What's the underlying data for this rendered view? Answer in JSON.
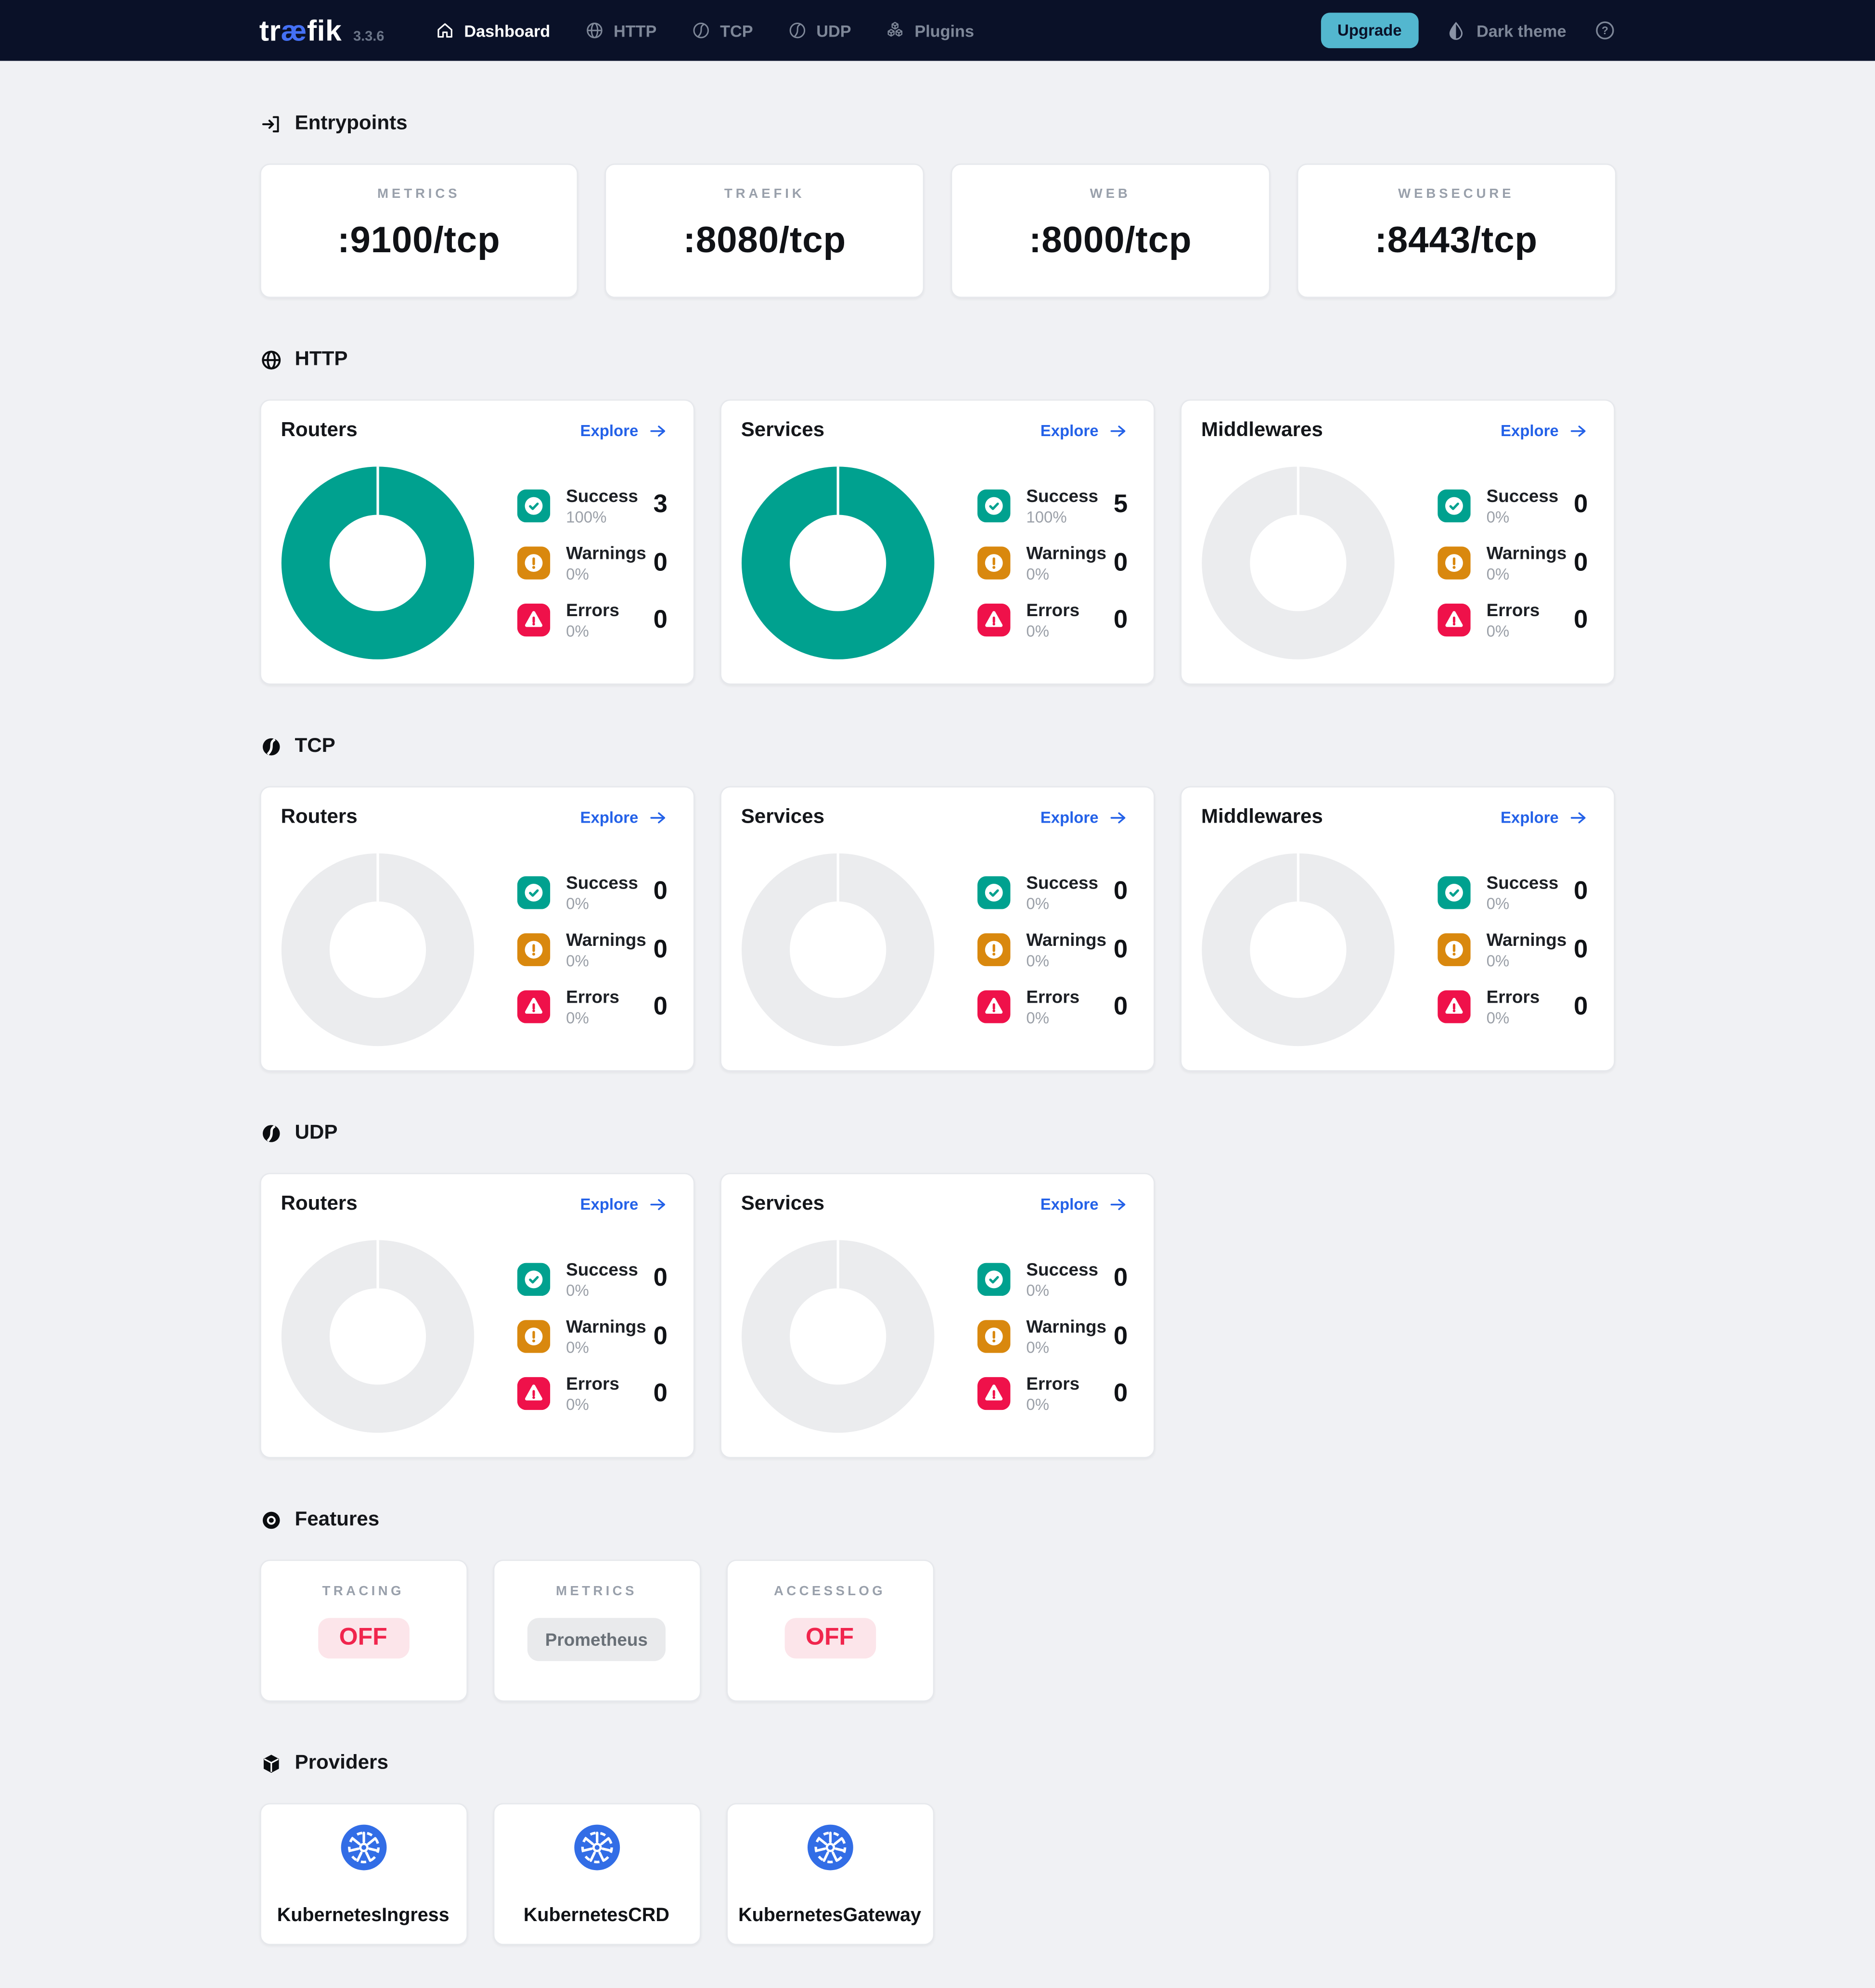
{
  "navbar": {
    "logo_parts": {
      "pre": "tr",
      "mid": "æ",
      "post": "fik"
    },
    "version": "3.3.6",
    "items": [
      {
        "label": "Dashboard",
        "icon": "home",
        "active": true
      },
      {
        "label": "HTTP",
        "icon": "globe",
        "active": false
      },
      {
        "label": "TCP",
        "icon": "ball",
        "active": false
      },
      {
        "label": "UDP",
        "icon": "ball",
        "active": false
      },
      {
        "label": "Plugins",
        "icon": "cubes",
        "active": false
      }
    ],
    "upgrade_label": "Upgrade",
    "theme_label": "Dark theme"
  },
  "entrypoints": {
    "title": "Entrypoints",
    "cards": [
      {
        "label": "METRICS",
        "value": ":9100/tcp"
      },
      {
        "label": "TRAEFIK",
        "value": ":8080/tcp"
      },
      {
        "label": "WEB",
        "value": ":8000/tcp"
      },
      {
        "label": "WEBSECURE",
        "value": ":8443/tcp"
      }
    ]
  },
  "protocol_sections": [
    {
      "id": "http",
      "title": "HTTP",
      "icon": "globe",
      "cards": [
        {
          "title": "Routers",
          "explore_label": "Explore",
          "donut": "filled",
          "stats": [
            {
              "label": "Success",
              "percent": "100%",
              "value": "3"
            },
            {
              "label": "Warnings",
              "percent": "0%",
              "value": "0"
            },
            {
              "label": "Errors",
              "percent": "0%",
              "value": "0"
            }
          ]
        },
        {
          "title": "Services",
          "explore_label": "Explore",
          "donut": "filled",
          "stats": [
            {
              "label": "Success",
              "percent": "100%",
              "value": "5"
            },
            {
              "label": "Warnings",
              "percent": "0%",
              "value": "0"
            },
            {
              "label": "Errors",
              "percent": "0%",
              "value": "0"
            }
          ]
        },
        {
          "title": "Middlewares",
          "explore_label": "Explore",
          "donut": "empty",
          "stats": [
            {
              "label": "Success",
              "percent": "0%",
              "value": "0"
            },
            {
              "label": "Warnings",
              "percent": "0%",
              "value": "0"
            },
            {
              "label": "Errors",
              "percent": "0%",
              "value": "0"
            }
          ]
        }
      ]
    },
    {
      "id": "tcp",
      "title": "TCP",
      "icon": "ball",
      "cards": [
        {
          "title": "Routers",
          "explore_label": "Explore",
          "donut": "empty",
          "stats": [
            {
              "label": "Success",
              "percent": "0%",
              "value": "0"
            },
            {
              "label": "Warnings",
              "percent": "0%",
              "value": "0"
            },
            {
              "label": "Errors",
              "percent": "0%",
              "value": "0"
            }
          ]
        },
        {
          "title": "Services",
          "explore_label": "Explore",
          "donut": "empty",
          "stats": [
            {
              "label": "Success",
              "percent": "0%",
              "value": "0"
            },
            {
              "label": "Warnings",
              "percent": "0%",
              "value": "0"
            },
            {
              "label": "Errors",
              "percent": "0%",
              "value": "0"
            }
          ]
        },
        {
          "title": "Middlewares",
          "explore_label": "Explore",
          "donut": "empty",
          "stats": [
            {
              "label": "Success",
              "percent": "0%",
              "value": "0"
            },
            {
              "label": "Warnings",
              "percent": "0%",
              "value": "0"
            },
            {
              "label": "Errors",
              "percent": "0%",
              "value": "0"
            }
          ]
        }
      ]
    },
    {
      "id": "udp",
      "title": "UDP",
      "icon": "ball",
      "cards": [
        {
          "title": "Routers",
          "explore_label": "Explore",
          "donut": "empty",
          "stats": [
            {
              "label": "Success",
              "percent": "0%",
              "value": "0"
            },
            {
              "label": "Warnings",
              "percent": "0%",
              "value": "0"
            },
            {
              "label": "Errors",
              "percent": "0%",
              "value": "0"
            }
          ]
        },
        {
          "title": "Services",
          "explore_label": "Explore",
          "donut": "empty",
          "stats": [
            {
              "label": "Success",
              "percent": "0%",
              "value": "0"
            },
            {
              "label": "Warnings",
              "percent": "0%",
              "value": "0"
            },
            {
              "label": "Errors",
              "percent": "0%",
              "value": "0"
            }
          ]
        }
      ]
    }
  ],
  "features": {
    "title": "Features",
    "cards": [
      {
        "label": "TRACING",
        "value": "OFF",
        "style": "off"
      },
      {
        "label": "METRICS",
        "value": "Prometheus",
        "style": "neutral"
      },
      {
        "label": "ACCESSLOG",
        "value": "OFF",
        "style": "off"
      }
    ]
  },
  "providers": {
    "title": "Providers",
    "cards": [
      {
        "name": "KubernetesIngress"
      },
      {
        "name": "KubernetesCRD"
      },
      {
        "name": "KubernetesGateway"
      }
    ]
  },
  "colors": {
    "navbar_bg": "#0a1128",
    "page_bg": "#f0f1f4",
    "accent_teal": "#00a18f",
    "warning_orange": "#d9880e",
    "error_red": "#ef114a",
    "link_blue": "#2361e8",
    "upgrade_cyan": "#53b7cf",
    "kubernetes_blue": "#326de6",
    "empty_donut": "#ebecee",
    "off_text": "#f0254d",
    "off_bg": "#fce5ea"
  }
}
